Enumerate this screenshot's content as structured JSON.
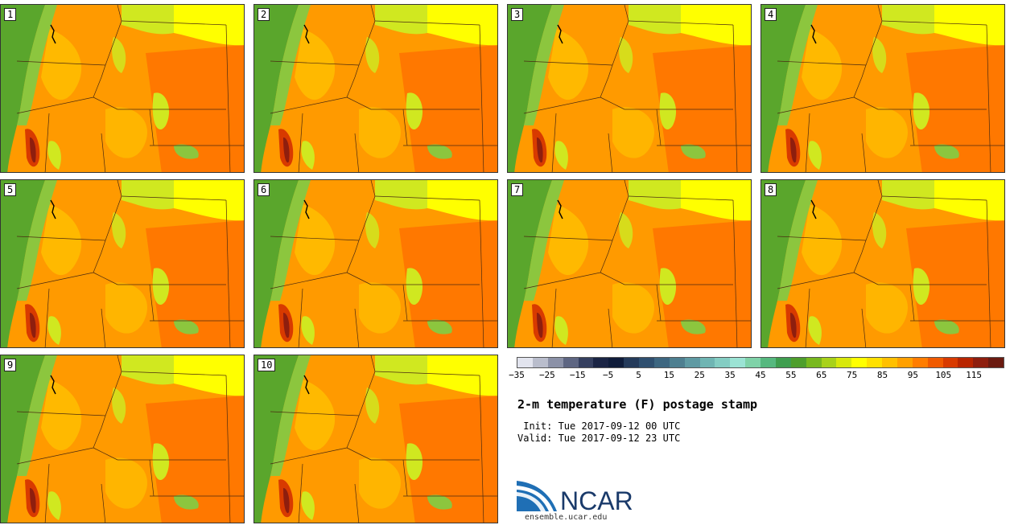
{
  "panels": [
    {
      "label": "1"
    },
    {
      "label": "2"
    },
    {
      "label": "3"
    },
    {
      "label": "4"
    },
    {
      "label": "5"
    },
    {
      "label": "6"
    },
    {
      "label": "7"
    },
    {
      "label": "8"
    },
    {
      "label": "9"
    },
    {
      "label": "10"
    }
  ],
  "colorbar": {
    "colors": [
      "#e2e4ee",
      "#b9bdcc",
      "#8b91a7",
      "#5e6682",
      "#353f5f",
      "#1a2444",
      "#0f1c3a",
      "#243a5a",
      "#2f4f6f",
      "#3d6680",
      "#4e7f90",
      "#5f9aa3",
      "#6fb5b3",
      "#84cdc3",
      "#9be3d4",
      "#7fd2a8",
      "#56b87f",
      "#3f9e4f",
      "#4e9e2c",
      "#78b81e",
      "#a8d21a",
      "#d8e80c",
      "#ffff00",
      "#ffe000",
      "#ffc000",
      "#ffa000",
      "#ff7d00",
      "#f05a00",
      "#d83a00",
      "#b82500",
      "#8e1e0e",
      "#6a1a10"
    ],
    "ticks": [
      "−35",
      "−25",
      "−15",
      "−5",
      "5",
      "15",
      "25",
      "35",
      "45",
      "55",
      "65",
      "75",
      "85",
      "95",
      "105",
      "115"
    ]
  },
  "title": "2-m temperature (F) postage stamp",
  "init_line": " Init: Tue 2017-09-12 00 UTC",
  "valid_line": "Valid: Tue 2017-09-12 23 UTC",
  "logo_text": "NCAR",
  "url": "ensemble.ucar.edu",
  "map_colors": {
    "ocean": "#5aa62c",
    "coast_green": "#8cc63e",
    "yellow_green": "#d0e820",
    "yellow": "#ffff00",
    "light_orange": "#ffc000",
    "orange": "#ff9a00",
    "dark_orange": "#ff7800",
    "red": "#d83a00",
    "dark_red": "#8e1e0e",
    "border": "#4a2a10"
  }
}
